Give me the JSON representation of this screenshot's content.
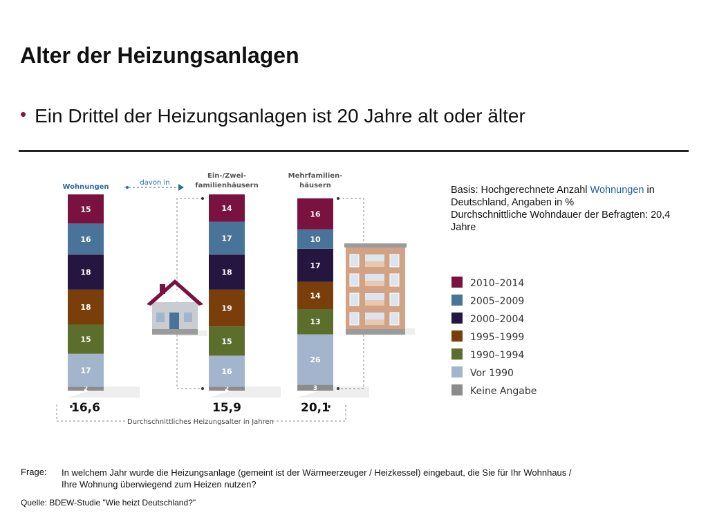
{
  "title": "Alter der Heizungsanlagen",
  "bullet": "Ein Drittel der Heizungsanlagen ist 20 Jahre alt oder älter",
  "basis": {
    "pre": "Basis: Hochgerechnete Anzahl ",
    "highlight": "Wohnungen",
    "post": " in Deutschland, Angaben in %",
    "line2": "Durchschnittliche Wohndauer der Befragten: 20,4 Jahre"
  },
  "frage": {
    "label": "Frage:",
    "text": "In welchem Jahr wurde die Heizungsanlage (gemeint ist der Wärmeerzeuger / Heizkessel) eingebaut, die Sie für Ihr Wohnhaus / Ihre Wohnung überwiegend zum Heizen nutzen?"
  },
  "quelle": "Quelle: BDEW-Studie \"Wie heizt Deutschland?\"",
  "chart_data": {
    "type": "bar",
    "stacked": true,
    "unit": "%",
    "categories": [
      "Wohnungen",
      "Ein-/Zwei-familienhäusern",
      "Mehrfamilien-häusern"
    ],
    "category_lines": [
      [
        "Wohnungen"
      ],
      [
        "Ein-/Zwei-",
        "familienhäusern"
      ],
      [
        "Mehrfamilien-",
        "häusern"
      ]
    ],
    "davon_label": "davon in",
    "averages": [
      "16,6",
      "15,9",
      "20,1"
    ],
    "average_label": "Durchschnittliches Heizungsalter in Jahren",
    "series": [
      {
        "name": "Keine Angabe",
        "color": "#8c8c8c",
        "values": [
          2,
          2,
          3
        ]
      },
      {
        "name": "Vor 1990",
        "color": "#a3b5cc",
        "values": [
          17,
          16,
          26
        ]
      },
      {
        "name": "1990–1994",
        "color": "#5c6e2b",
        "values": [
          15,
          15,
          13
        ]
      },
      {
        "name": "1995–1999",
        "color": "#7a3e0a",
        "values": [
          18,
          19,
          14
        ]
      },
      {
        "name": "2000–2004",
        "color": "#24163e",
        "values": [
          18,
          18,
          17
        ]
      },
      {
        "name": "2005–2009",
        "color": "#4a7399",
        "values": [
          16,
          17,
          10
        ]
      },
      {
        "name": "2010–2014",
        "color": "#7a1240",
        "values": [
          15,
          14,
          16
        ]
      }
    ],
    "legend_order": [
      "2010–2014",
      "2005–2009",
      "2000–2004",
      "1995–1999",
      "1990–1994",
      "Vor 1990",
      "Keine Angabe"
    ],
    "legend_position": "right"
  }
}
